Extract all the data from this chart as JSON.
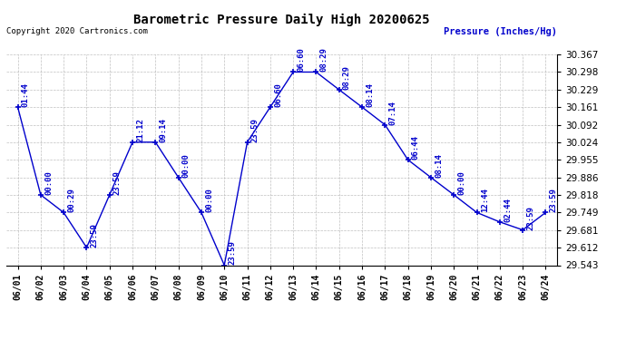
{
  "title": "Barometric Pressure Daily High 20200625",
  "ylabel": "Pressure (Inches/Hg)",
  "copyright_text": "Copyright 2020 Cartronics.com",
  "background_color": "#ffffff",
  "line_color": "#0000cc",
  "text_color": "#0000cc",
  "grid_color": "#b0b0b0",
  "ylim": [
    29.543,
    30.367
  ],
  "yticks": [
    29.543,
    29.612,
    29.681,
    29.749,
    29.818,
    29.886,
    29.955,
    30.024,
    30.092,
    30.161,
    30.229,
    30.298,
    30.367
  ],
  "data": [
    {
      "date": "06/01",
      "time": "01:44",
      "value": 30.161
    },
    {
      "date": "06/02",
      "time": "00:00",
      "value": 29.818
    },
    {
      "date": "06/03",
      "time": "00:29",
      "value": 29.749
    },
    {
      "date": "06/04",
      "time": "23:59",
      "value": 29.612
    },
    {
      "date": "06/05",
      "time": "23:59",
      "value": 29.818
    },
    {
      "date": "06/06",
      "time": "21:12",
      "value": 30.024
    },
    {
      "date": "06/07",
      "time": "09:14",
      "value": 30.024
    },
    {
      "date": "06/08",
      "time": "00:00",
      "value": 29.886
    },
    {
      "date": "06/09",
      "time": "00:00",
      "value": 29.749
    },
    {
      "date": "06/10",
      "time": "23:59",
      "value": 29.543
    },
    {
      "date": "06/11",
      "time": "23:59",
      "value": 30.024
    },
    {
      "date": "06/12",
      "time": "06:60",
      "value": 30.161
    },
    {
      "date": "06/13",
      "time": "06:60",
      "value": 30.298
    },
    {
      "date": "06/14",
      "time": "08:29",
      "value": 30.298
    },
    {
      "date": "06/15",
      "time": "08:29",
      "value": 30.229
    },
    {
      "date": "06/16",
      "time": "08:14",
      "value": 30.161
    },
    {
      "date": "06/17",
      "time": "07:14",
      "value": 30.092
    },
    {
      "date": "06/18",
      "time": "06:44",
      "value": 29.955
    },
    {
      "date": "06/19",
      "time": "08:14",
      "value": 29.886
    },
    {
      "date": "06/20",
      "time": "00:00",
      "value": 29.818
    },
    {
      "date": "06/21",
      "time": "12:44",
      "value": 29.749
    },
    {
      "date": "06/22",
      "time": "02:44",
      "value": 29.712
    },
    {
      "date": "06/23",
      "time": "23:59",
      "value": 29.681
    },
    {
      "date": "06/24",
      "time": "23:59",
      "value": 29.749
    }
  ]
}
